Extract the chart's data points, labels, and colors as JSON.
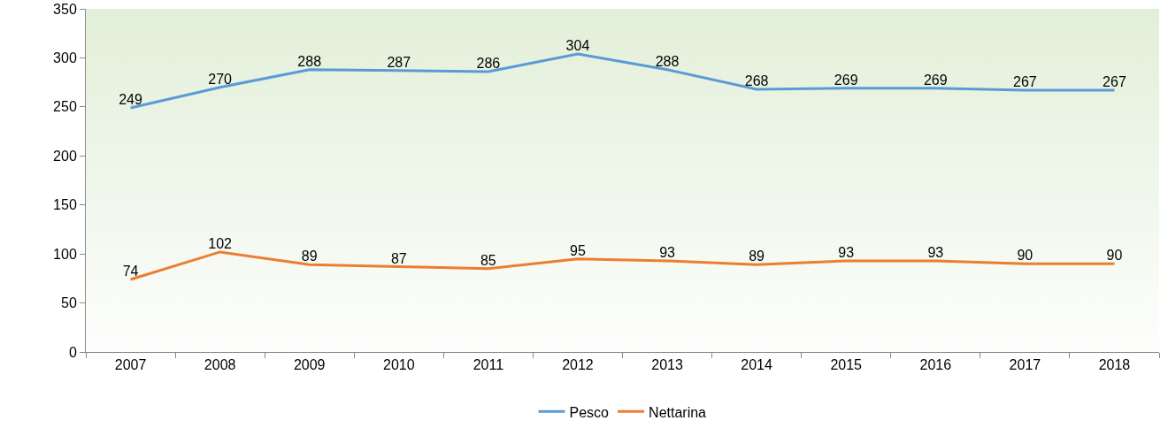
{
  "chart_data": {
    "type": "line",
    "categories": [
      "2007",
      "2008",
      "2009",
      "2010",
      "2011",
      "2012",
      "2013",
      "2014",
      "2015",
      "2016",
      "2017",
      "2018"
    ],
    "series": [
      {
        "name": "Pesco",
        "color": "#5b9bd5",
        "values": [
          249,
          270,
          288,
          287,
          286,
          304,
          288,
          268,
          269,
          269,
          267,
          267
        ]
      },
      {
        "name": "Nettarina",
        "color": "#ed7d31",
        "values": [
          74,
          102,
          89,
          87,
          85,
          95,
          93,
          89,
          93,
          93,
          90,
          90
        ]
      }
    ],
    "ylim": [
      0,
      350
    ],
    "yticks": [
      0,
      50,
      100,
      150,
      200,
      250,
      300,
      350
    ],
    "grid": false,
    "legend": "bottom",
    "data_labels": true,
    "marker": "none",
    "line_style": "solid"
  }
}
